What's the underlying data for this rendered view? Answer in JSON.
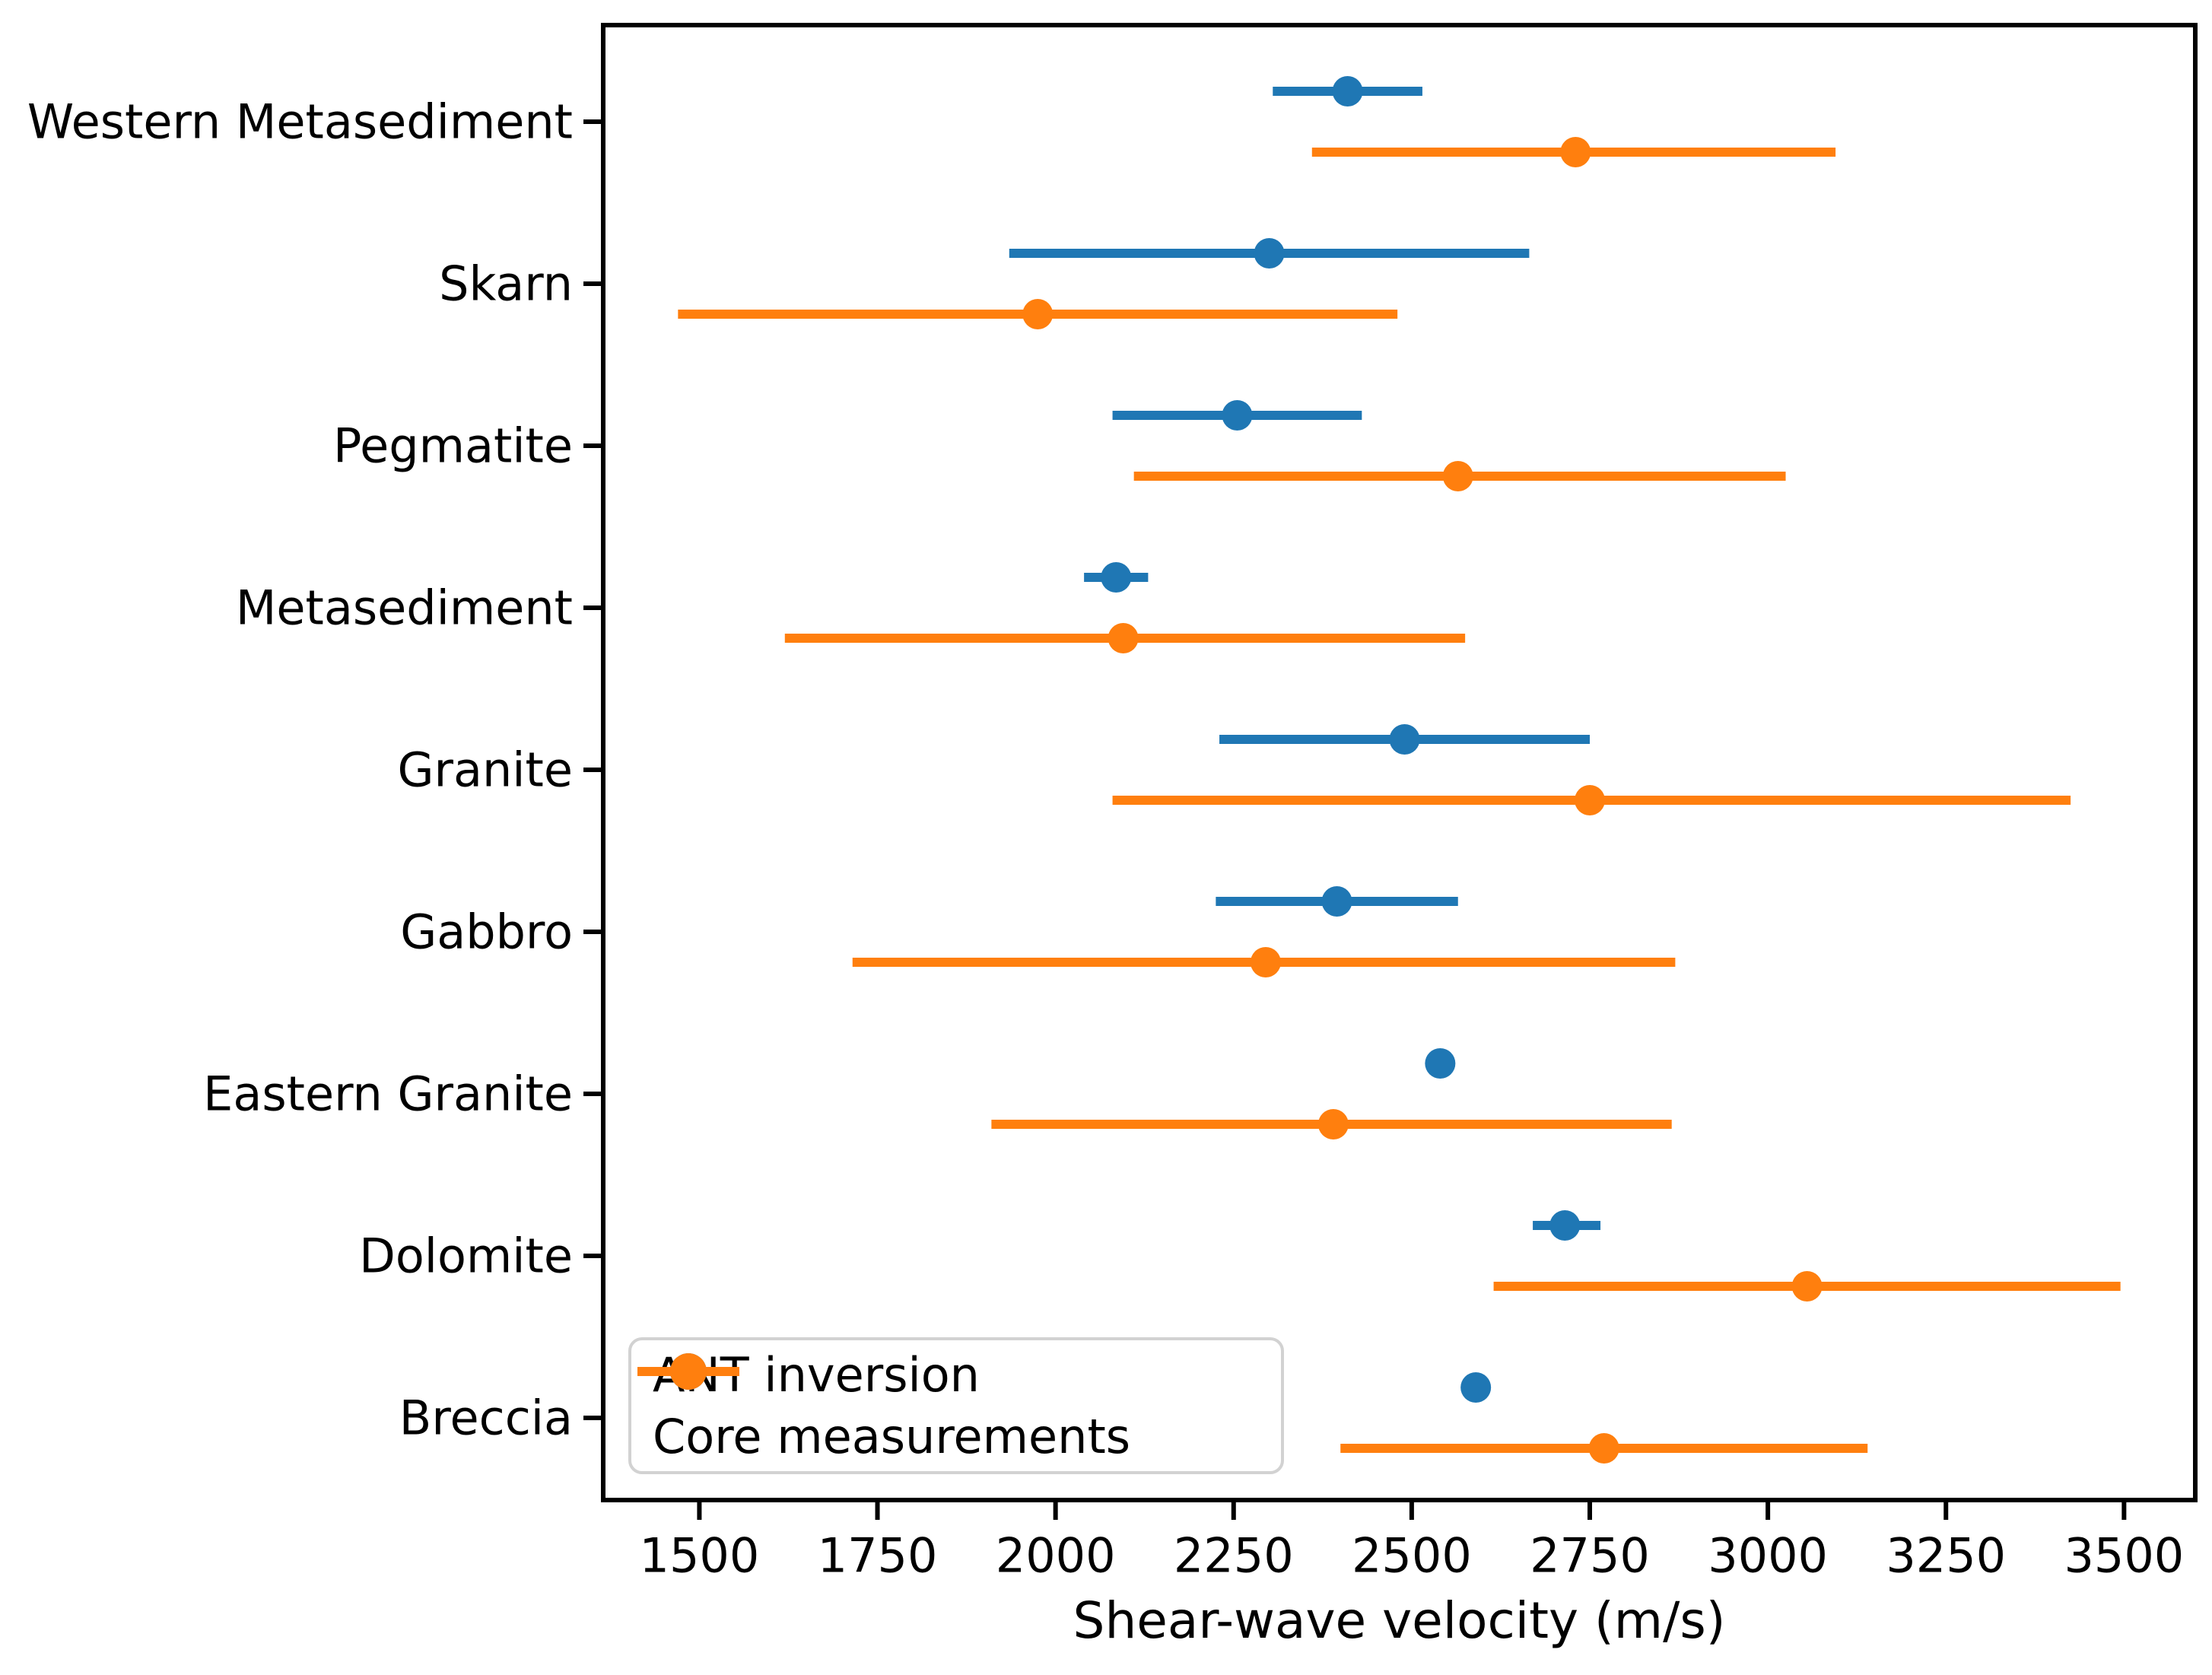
{
  "figure": {
    "background": "#ffffff",
    "text_color": "#000000",
    "spine_color": "#000000"
  },
  "chart_data": {
    "type": "scatter",
    "subtype": "horizontal-errorbar-dot-plot",
    "title": "",
    "xlabel": "Shear-wave velocity (m/s)",
    "ylabel": "",
    "grid": false,
    "legend_position": "lower left",
    "xlim": [
      1365,
      3600
    ],
    "xticks": [
      1500,
      1750,
      2000,
      2250,
      2500,
      2750,
      3000,
      3250,
      3500
    ],
    "categories": [
      "Western Metasediment",
      "Skarn",
      "Pegmatite",
      "Metasediment",
      "Granite",
      "Gabbro",
      "Eastern Granite",
      "Dolomite",
      "Breccia"
    ],
    "series": [
      {
        "name": "ANT inversion",
        "color": "#1f77b4",
        "values": [
          2410,
          2300,
          2255,
          2085,
          2490,
          2395,
          2540,
          2715,
          2590
        ],
        "err_lo": [
          2305,
          1935,
          2080,
          2040,
          2230,
          2225,
          2540,
          2670,
          2590
        ],
        "err_hi": [
          2515,
          2665,
          2430,
          2130,
          2750,
          2565,
          2540,
          2765,
          2590
        ]
      },
      {
        "name": "Core measurements",
        "color": "#ff7f0e",
        "values": [
          2730,
          1975,
          2565,
          2095,
          2750,
          2295,
          2390,
          3055,
          2770
        ],
        "err_lo": [
          2360,
          1470,
          2110,
          1620,
          2080,
          1715,
          1910,
          2615,
          2400
        ],
        "err_hi": [
          3095,
          2480,
          3025,
          2575,
          3425,
          2870,
          2865,
          3495,
          3140
        ]
      }
    ]
  },
  "legend": {
    "items": [
      {
        "label": "ANT inversion",
        "color": "#1f77b4"
      },
      {
        "label": "Core measurements",
        "color": "#ff7f0e"
      }
    ]
  },
  "axes": {
    "xlabel": "Shear-wave velocity (m/s)"
  }
}
